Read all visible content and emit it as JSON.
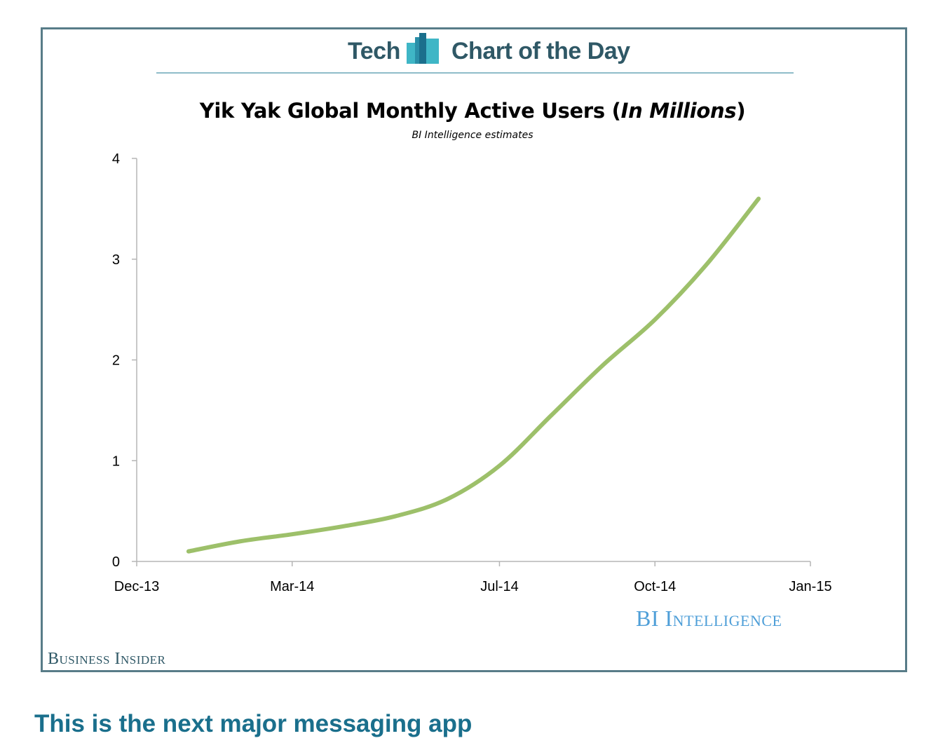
{
  "header": {
    "left_text": "Tech",
    "right_text": "Chart of the Day",
    "logo_icon": "bar-chart-logo-icon",
    "colors": {
      "text": "#2f5866",
      "logo_light": "#3fb6c6",
      "logo_dark": "#1b6f8c",
      "rule": "#8fbcc9"
    }
  },
  "chart_data": {
    "type": "line",
    "title_main": "Yik Yak Global Monthly Active Users (",
    "title_italic": "In Millions",
    "title_end": ")",
    "subtitle": "BI Intelligence estimates",
    "xlabel": "",
    "ylabel": "",
    "x_ticks": [
      "Dec-13",
      "Mar-14",
      "Jul-14",
      "Oct-14",
      "Jan-15"
    ],
    "y_ticks": [
      "0",
      "1",
      "2",
      "3",
      "4"
    ],
    "ylim": [
      0,
      4
    ],
    "grid": false,
    "legend": "none",
    "series": [
      {
        "color": "#9dc06a",
        "points": [
          {
            "x": "2014-01",
            "y": 0.1
          },
          {
            "x": "2014-02",
            "y": 0.2
          },
          {
            "x": "2014-03",
            "y": 0.27
          },
          {
            "x": "2014-04",
            "y": 0.35
          },
          {
            "x": "2014-05",
            "y": 0.45
          },
          {
            "x": "2014-06",
            "y": 0.62
          },
          {
            "x": "2014-07",
            "y": 0.95
          },
          {
            "x": "2014-08",
            "y": 1.45
          },
          {
            "x": "2014-09",
            "y": 1.95
          },
          {
            "x": "2014-10",
            "y": 2.4
          },
          {
            "x": "2014-11",
            "y": 2.95
          },
          {
            "x": "2014-12",
            "y": 3.6
          }
        ]
      }
    ]
  },
  "brand": {
    "bi_intelligence": "BI Intelligence",
    "business_insider": "Business Insider"
  },
  "headline": "This is the next major messaging app"
}
